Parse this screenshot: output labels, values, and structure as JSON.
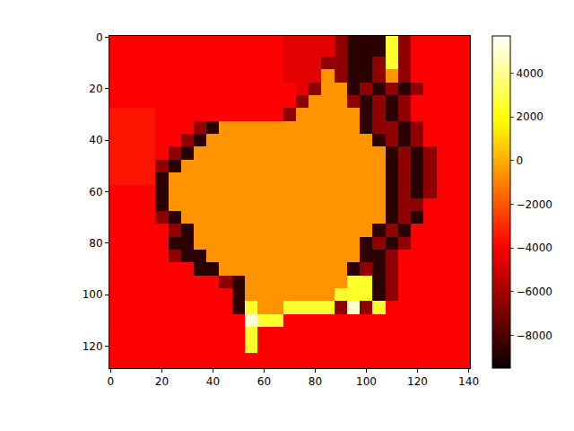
{
  "chart_data": {
    "type": "heatmap",
    "color": "hot",
    "x": [
      0,
      5,
      10,
      15,
      20,
      25,
      30,
      35,
      40,
      45,
      50,
      55,
      60,
      65,
      70,
      75,
      80,
      85,
      90,
      95,
      100,
      105,
      110,
      115,
      120,
      125,
      130,
      135,
      140
    ],
    "y": [
      0,
      5,
      10,
      15,
      20,
      25,
      30,
      35,
      40,
      45,
      50,
      55,
      60,
      65,
      70,
      75,
      80,
      85,
      90,
      95,
      100,
      105,
      110,
      115,
      120,
      125,
      130
    ],
    "z": [
      [
        -4000,
        -4000,
        -4000,
        -4000,
        -4000,
        -4000,
        -4000,
        -4000,
        -4000,
        -4000,
        -4000,
        -4000,
        -4000,
        -4000,
        -4600,
        -4600,
        -4600,
        -4600,
        -6500,
        -8800,
        -8800,
        -8800,
        2500,
        -6500,
        -4000,
        -4000,
        -4000,
        -4000,
        -4000
      ],
      [
        -4000,
        -4000,
        -4000,
        -4000,
        -4000,
        -4000,
        -4000,
        -4000,
        -4000,
        -4000,
        -4000,
        -4000,
        -4000,
        -4000,
        -4600,
        -4600,
        -4600,
        -4600,
        -6500,
        -8800,
        -8800,
        -8800,
        2500,
        -6500,
        -4000,
        -4000,
        -4000,
        -4000,
        -4000
      ],
      [
        -4000,
        -4000,
        -4000,
        -4000,
        -4000,
        -4000,
        -4000,
        -4000,
        -4000,
        -4000,
        -4000,
        -4000,
        -4000,
        -4000,
        -4600,
        -4600,
        -4600,
        -6500,
        -6500,
        -8800,
        -8800,
        -6500,
        2500,
        -6500,
        -4000,
        -4000,
        -4000,
        -4000,
        -4000
      ],
      [
        -4000,
        -4000,
        -4000,
        -4000,
        -4000,
        -4000,
        -4000,
        -4000,
        -4000,
        -4000,
        -4000,
        -4000,
        -4000,
        -4000,
        -4600,
        -4600,
        -4600,
        -600,
        -6500,
        -8800,
        -8800,
        -6500,
        -600,
        -6500,
        -4000,
        -4000,
        -4000,
        -4000,
        -4000
      ],
      [
        -4000,
        -4000,
        -4000,
        -4000,
        -4000,
        -4000,
        -4000,
        -4000,
        -4000,
        -4000,
        -4000,
        -4000,
        -4000,
        -4000,
        -4000,
        -4600,
        -6500,
        -600,
        -600,
        -8800,
        -6500,
        -8800,
        -6500,
        -8800,
        -6500,
        -4000,
        -4000,
        -4000,
        -4000
      ],
      [
        -4000,
        -4000,
        -4000,
        -4000,
        -4000,
        -4000,
        -4000,
        -4000,
        -4000,
        -4000,
        -4000,
        -4000,
        -4000,
        -4000,
        -4000,
        -6500,
        -600,
        -600,
        -600,
        -6500,
        -8800,
        -6500,
        -8800,
        -6500,
        -4000,
        -4000,
        -4000,
        -4000,
        -4000
      ],
      [
        -3500,
        -3500,
        -3500,
        -3500,
        -4000,
        -4000,
        -4000,
        -4000,
        -4000,
        -4000,
        -4000,
        -4000,
        -4000,
        -4000,
        -6500,
        -600,
        -600,
        -600,
        -600,
        -600,
        -8800,
        -6500,
        -8800,
        -6500,
        -4000,
        -4000,
        -4000,
        -4000,
        -4000
      ],
      [
        -3500,
        -3500,
        -3500,
        -3500,
        -4000,
        -4000,
        -4000,
        -6500,
        -8800,
        -600,
        -600,
        -600,
        -600,
        -600,
        -600,
        -600,
        -600,
        -600,
        -600,
        -600,
        -8800,
        -6500,
        -6500,
        -8800,
        -6500,
        -4000,
        -4000,
        -4000,
        -4000
      ],
      [
        -3500,
        -3500,
        -3500,
        -3500,
        -4000,
        -4000,
        -6500,
        -8800,
        -600,
        -600,
        -600,
        -600,
        -600,
        -600,
        -600,
        -600,
        -600,
        -600,
        -600,
        -600,
        -600,
        -8800,
        -6500,
        -8800,
        -6500,
        -4000,
        -4000,
        -4000,
        -4000
      ],
      [
        -3500,
        -3500,
        -3500,
        -3500,
        -4000,
        -6500,
        -8800,
        -600,
        -600,
        -600,
        -600,
        -600,
        -600,
        -600,
        -600,
        -600,
        -600,
        -600,
        -600,
        -600,
        -600,
        -600,
        -8800,
        -6500,
        -8800,
        -6500,
        -4000,
        -4000,
        -4000
      ],
      [
        -3500,
        -3500,
        -3500,
        -3500,
        -6500,
        -8800,
        -600,
        -600,
        -600,
        -600,
        -600,
        -600,
        -600,
        -600,
        -600,
        -600,
        -600,
        -600,
        -600,
        -600,
        -600,
        -600,
        -8800,
        -6500,
        -8800,
        -6500,
        -4000,
        -4000,
        -4000
      ],
      [
        -3500,
        -3500,
        -3500,
        -3500,
        -8800,
        -600,
        -600,
        -600,
        -600,
        -600,
        -600,
        -600,
        -600,
        -600,
        -600,
        -600,
        -600,
        -600,
        -600,
        -600,
        -600,
        -600,
        -8800,
        -6500,
        -8800,
        -6500,
        -4000,
        -4000,
        -4000
      ],
      [
        -4000,
        -4000,
        -4000,
        -4000,
        -8800,
        -600,
        -600,
        -600,
        -600,
        -600,
        -600,
        -600,
        -600,
        -600,
        -600,
        -600,
        -600,
        -600,
        -600,
        -600,
        -600,
        -600,
        -8800,
        -6500,
        -8800,
        -6500,
        -4000,
        -4000,
        -4000
      ],
      [
        -4000,
        -4000,
        -4000,
        -4000,
        -8800,
        -600,
        -600,
        -600,
        -600,
        -600,
        -600,
        -600,
        -600,
        -600,
        -600,
        -600,
        -600,
        -600,
        -600,
        -600,
        -600,
        -600,
        -8800,
        -6500,
        -6500,
        -4000,
        -4000,
        -4000,
        -4000
      ],
      [
        -4000,
        -4000,
        -4000,
        -4000,
        -6500,
        -8800,
        -600,
        -600,
        -600,
        -600,
        -600,
        -600,
        -600,
        -600,
        -600,
        -600,
        -600,
        -600,
        -600,
        -600,
        -600,
        -600,
        -8800,
        -6500,
        -8800,
        -4000,
        -4000,
        -4000,
        -4000
      ],
      [
        -4000,
        -4000,
        -4000,
        -4000,
        -4000,
        -6500,
        -8800,
        -600,
        -600,
        -600,
        -600,
        -600,
        -600,
        -600,
        -600,
        -600,
        -600,
        -600,
        -600,
        -600,
        -600,
        -8800,
        -6500,
        -8800,
        -4000,
        -4000,
        -4000,
        -4000,
        -4000
      ],
      [
        -4000,
        -4000,
        -4000,
        -4000,
        -4000,
        -8800,
        -8800,
        -600,
        -600,
        -600,
        -600,
        -600,
        -600,
        -600,
        -600,
        -600,
        -600,
        -600,
        -600,
        -600,
        -8800,
        -6500,
        -8800,
        -6500,
        -4000,
        -4000,
        -4000,
        -4000,
        -4000
      ],
      [
        -4000,
        -4000,
        -4000,
        -4000,
        -4000,
        -6500,
        -8800,
        -8800,
        -600,
        -600,
        -600,
        -600,
        -600,
        -600,
        -600,
        -600,
        -600,
        -600,
        -600,
        -600,
        -8800,
        -8800,
        -6500,
        -4000,
        -4000,
        -4000,
        -4000,
        -4000,
        -4000
      ],
      [
        -4000,
        -4000,
        -4000,
        -4000,
        -4000,
        -4000,
        -4000,
        -8800,
        -8800,
        -600,
        -600,
        -600,
        -600,
        -600,
        -600,
        -600,
        -600,
        -600,
        -600,
        -8800,
        -6500,
        -8800,
        -6500,
        -4000,
        -4000,
        -4000,
        -4000,
        -4000,
        -4000
      ],
      [
        -4000,
        -4000,
        -4000,
        -4000,
        -4000,
        -4000,
        -4000,
        -4000,
        -4000,
        -6500,
        -8800,
        -600,
        -600,
        -600,
        -600,
        -600,
        -600,
        -600,
        -600,
        2500,
        2500,
        -8800,
        -6500,
        -4000,
        -4000,
        -4000,
        -4000,
        -4000,
        -4000
      ],
      [
        -4000,
        -4000,
        -4000,
        -4000,
        -4000,
        -4000,
        -4000,
        -4000,
        -4000,
        -4000,
        -8800,
        -600,
        -600,
        -600,
        -600,
        -600,
        -600,
        -600,
        2500,
        2500,
        2500,
        -8800,
        -6500,
        -4000,
        -4000,
        -4000,
        -4000,
        -4000,
        -4000
      ],
      [
        -4000,
        -4000,
        -4000,
        -4000,
        -4000,
        -4000,
        -4000,
        -4000,
        -4000,
        -4000,
        -8800,
        2500,
        -600,
        -600,
        2500,
        2500,
        2500,
        2500,
        -6500,
        5000,
        -6500,
        2500,
        -4000,
        -4000,
        -4000,
        -4000,
        -4000,
        -4000,
        -4000
      ],
      [
        -4000,
        -4000,
        -4000,
        -4000,
        -4000,
        -4000,
        -4000,
        -4000,
        -4000,
        -4000,
        -4000,
        5000,
        2500,
        2500,
        -4000,
        -4000,
        -4000,
        -4000,
        -4000,
        -4000,
        -4000,
        -4000,
        -4000,
        -4000,
        -4000,
        -4000,
        -4000,
        -4000,
        -4000
      ],
      [
        -4000,
        -4000,
        -4000,
        -4000,
        -4000,
        -4000,
        -4000,
        -4000,
        -4000,
        -4000,
        -4000,
        2500,
        -4000,
        -4000,
        -4000,
        -4000,
        -4000,
        -4000,
        -4000,
        -4000,
        -4000,
        -4000,
        -4000,
        -4000,
        -4000,
        -4000,
        -4000,
        -4000,
        -4000
      ],
      [
        -4000,
        -4000,
        -4000,
        -4000,
        -4000,
        -4000,
        -4000,
        -4000,
        -4000,
        -4000,
        -4000,
        2500,
        -4000,
        -4000,
        -4000,
        -4000,
        -4000,
        -4000,
        -4000,
        -4000,
        -4000,
        -4000,
        -4000,
        -4000,
        -4000,
        -4000,
        -4000,
        -4000,
        -4000
      ],
      [
        -4000,
        -4000,
        -4000,
        -4000,
        -4000,
        -4000,
        -4000,
        -4000,
        -4000,
        -4000,
        -4000,
        -4000,
        -4000,
        -4000,
        -4000,
        -4000,
        -4000,
        -4000,
        -4000,
        -4000,
        -4000,
        -4000,
        -4000,
        -4000,
        -4000,
        -4000,
        -4000,
        -4000,
        -4000
      ],
      [
        -4000,
        -4000,
        -4000,
        -4000,
        -4000,
        -4000,
        -4000,
        -4000,
        -4000,
        -4000,
        -4000,
        -4000,
        -4000,
        -4000,
        -4000,
        -4000,
        -4000,
        -4000,
        -4000,
        -4000,
        -4000,
        -4000,
        -4000,
        -4000,
        -4000,
        -4000,
        -4000,
        -4000,
        -4000
      ]
    ],
    "xlim": [
      -0.5,
      140.5
    ],
    "ylim": [
      128.5,
      -0.5
    ],
    "xticks": [
      0,
      20,
      40,
      60,
      80,
      100,
      120,
      140
    ],
    "yticks": [
      0,
      20,
      40,
      60,
      80,
      100,
      120
    ],
    "zlim": [
      -9500,
      5700
    ],
    "zticks": [
      {
        "value": -8000,
        "label": "−8000"
      },
      {
        "value": -6000,
        "label": "−6000"
      },
      {
        "value": -4000,
        "label": "−4000"
      },
      {
        "value": -2000,
        "label": "−2000"
      },
      0,
      2000,
      4000
    ]
  }
}
